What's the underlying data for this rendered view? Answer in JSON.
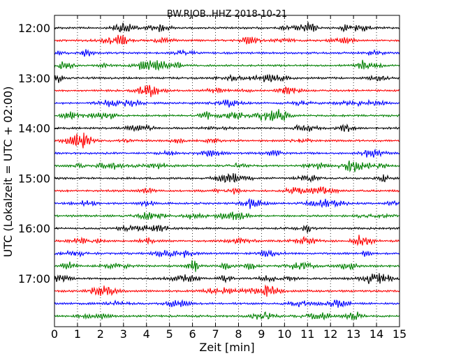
{
  "chart_data": {
    "type": "line",
    "title": "BW.RJOB..HHZ 2018-10-21",
    "xlabel": "Zeit  [min]",
    "ylabel": "UTC (Lokalzeit = UTC + 02:00)",
    "xlim": [
      0,
      15
    ],
    "x_ticks": [
      0,
      1,
      2,
      3,
      4,
      5,
      6,
      7,
      8,
      9,
      10,
      11,
      12,
      13,
      14,
      15
    ],
    "y_tick_labels": [
      "12:00",
      "13:00",
      "14:00",
      "15:00",
      "16:00",
      "17:00"
    ],
    "y_tick_trace_index": [
      0,
      4,
      8,
      12,
      16,
      20
    ],
    "trace_start_time": "12:00",
    "trace_interval_minutes": 15,
    "trace_count": 24,
    "color_cycle": [
      "#000000",
      "#ff0000",
      "#0000ff",
      "#008000"
    ],
    "grid": "vertical-dotted"
  }
}
